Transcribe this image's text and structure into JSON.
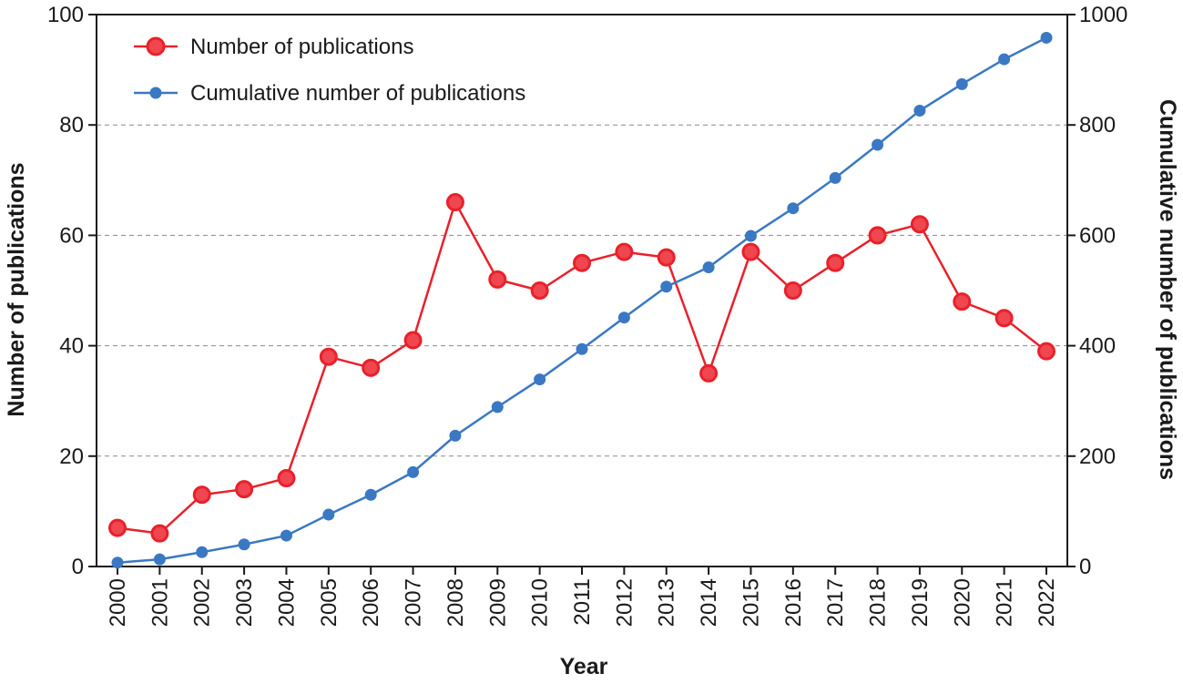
{
  "chart_data": {
    "type": "line",
    "x": [
      "2000",
      "2001",
      "2002",
      "2003",
      "2004",
      "2005",
      "2006",
      "2007",
      "2008",
      "2009",
      "2010",
      "2011",
      "2012",
      "2013",
      "2014",
      "2015",
      "2016",
      "2017",
      "2018",
      "2019",
      "2020",
      "2021",
      "2022"
    ],
    "series": [
      {
        "name": "Number of publications",
        "axis": "left",
        "color": "#e8212b",
        "values": [
          7,
          6,
          13,
          14,
          16,
          38,
          36,
          41,
          66,
          52,
          50,
          55,
          57,
          56,
          35,
          57,
          50,
          55,
          60,
          62,
          48,
          45,
          39
        ]
      },
      {
        "name": "Cumulative number of publications",
        "axis": "right",
        "color": "#3a78c3",
        "values": [
          7,
          13,
          26,
          40,
          56,
          94,
          130,
          171,
          237,
          289,
          339,
          394,
          451,
          507,
          542,
          599,
          649,
          704,
          764,
          826,
          874,
          919,
          958
        ]
      }
    ],
    "xlabel": "Year",
    "ylabel": "Number of publications",
    "y2label": "Cumulative number of publications",
    "ylim": [
      0,
      100
    ],
    "y2lim": [
      0,
      1000
    ],
    "yticks": [
      "0",
      "20",
      "40",
      "60",
      "80",
      "100"
    ],
    "y2ticks": [
      "0",
      "200",
      "400",
      "600",
      "800",
      "1000"
    ],
    "grid": "horizontal-dashed",
    "legend": "top-left"
  }
}
